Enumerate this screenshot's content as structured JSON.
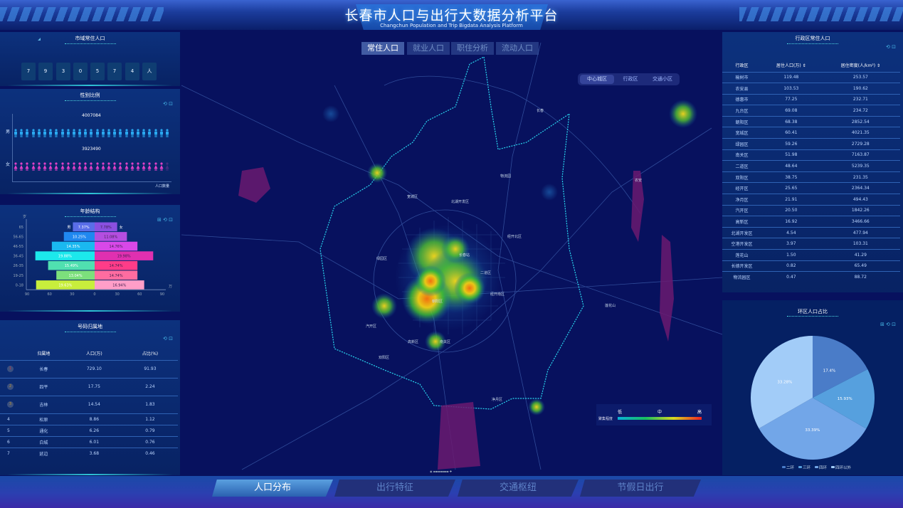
{
  "header": {
    "title": "长春市人口与出行大数据分析平台",
    "subtitle": "Changchun Population and Trip Bigdata Analysis Platform"
  },
  "map_tabs": [
    {
      "label": "常住人口",
      "active": true
    },
    {
      "label": "就业人口",
      "active": false
    },
    {
      "label": "职住分析",
      "active": false
    },
    {
      "label": "流动人口",
      "active": false
    }
  ],
  "map_subtabs": [
    {
      "label": "中心城区",
      "active": true
    },
    {
      "label": "行政区",
      "active": false
    },
    {
      "label": "交通小区",
      "active": false
    }
  ],
  "map_labels": [
    "长春",
    "宽城区",
    "北湖开发区",
    "物流园",
    "经开北区",
    "绿园区",
    "长春站",
    "二道区",
    "经开南区",
    "朝阳区",
    "汽开区",
    "高新区",
    "南关区",
    "双阳区",
    "净月区",
    "莲花山",
    "农安"
  ],
  "heat_legend": {
    "title": "聚集程度",
    "low": "低",
    "mid": "中",
    "high": "高",
    "colors": [
      "#0ab0d8",
      "#18c060",
      "#d8d820",
      "#f02020"
    ]
  },
  "total_population": {
    "title": "市域常住人口",
    "digits": [
      "7",
      "9",
      "3",
      "0",
      "5",
      "7",
      "4"
    ],
    "unit": "人"
  },
  "gender": {
    "title": "性别比例",
    "male_label": "男",
    "female_label": "女",
    "male_value": "4007084",
    "female_value": "3923490",
    "axis_label": "人口数量",
    "male_color": "#2aa8f0",
    "female_color": "#e040c8"
  },
  "toolbox": {
    "icons": [
      "data-view-icon",
      "refresh-icon",
      "save-image-icon"
    ],
    "glyphs": "⊞ ⟲ ⊡",
    "glyphs_two": "⟲ ⊡"
  },
  "age_structure": {
    "title": "年龄结构",
    "y_unit": "岁",
    "x_unit": "万",
    "male_label": "男",
    "female_label": "女",
    "chart_data": {
      "type": "bar",
      "orientation": "horizontal-pyramid",
      "categories": [
        "0-18",
        "19-25",
        "26-35",
        "36-45",
        "46-55",
        "56-65",
        "65"
      ],
      "xlim": [
        -90,
        90
      ],
      "x_ticks": [
        "90",
        "60",
        "30",
        "0",
        "30",
        "60",
        "90"
      ],
      "series": [
        {
          "name": "男",
          "values": [
            78,
            51,
            62,
            79,
            57,
            41,
            29
          ],
          "labels": [
            "19.63%",
            "13.04%",
            "15.49%",
            "19.88%",
            "14.35%",
            "10.25%",
            "7.37%"
          ],
          "colors": [
            "#c8ee3c",
            "#7ce07c",
            "#50e0b0",
            "#1ce8ec",
            "#1ab8f0",
            "#2088f0",
            "#5a6ee8"
          ]
        },
        {
          "name": "女",
          "values": [
            66,
            57,
            57,
            78,
            57,
            43,
            30
          ],
          "labels": [
            "16.94%",
            "14.74%",
            "14.74%",
            "19.98%",
            "14.76%",
            "11.08%",
            "7.78%"
          ],
          "colors": [
            "#ff9ec8",
            "#ff6ca0",
            "#ff3c88",
            "#e030b0",
            "#d848e8",
            "#b44ee0",
            "#8a50e0"
          ]
        }
      ]
    }
  },
  "origin_table": {
    "title": "号码归属地",
    "headers": [
      "归属地",
      "人口(万)",
      "占比(%)"
    ],
    "rows": [
      {
        "rank": "1",
        "place": "长春",
        "pop": "729.10",
        "pct": "91.93"
      },
      {
        "rank": "2",
        "place": "四平",
        "pop": "17.75",
        "pct": "2.24"
      },
      {
        "rank": "3",
        "place": "吉林",
        "pop": "14.54",
        "pct": "1.83"
      },
      {
        "rank": "4",
        "place": "松原",
        "pop": "8.86",
        "pct": "1.12"
      },
      {
        "rank": "5",
        "place": "通化",
        "pop": "6.26",
        "pct": "0.79"
      },
      {
        "rank": "6",
        "place": "白城",
        "pop": "6.01",
        "pct": "0.76"
      },
      {
        "rank": "7",
        "place": "延边",
        "pop": "3.68",
        "pct": "0.46"
      }
    ]
  },
  "district_table": {
    "title": "行政区常住人口",
    "headers": [
      "行政区",
      "居住人口(万)",
      "居住密度(人/km²)"
    ],
    "sort_icon": "⇕",
    "rows": [
      [
        "榆树市",
        "119.48",
        "253.57"
      ],
      [
        "农安县",
        "103.53",
        "190.62"
      ],
      [
        "德惠市",
        "77.25",
        "232.71"
      ],
      [
        "九台区",
        "69.08",
        "234.72"
      ],
      [
        "朝阳区",
        "68.38",
        "2852.54"
      ],
      [
        "宽城区",
        "60.41",
        "4021.35"
      ],
      [
        "绿园区",
        "59.26",
        "2729.28"
      ],
      [
        "南关区",
        "51.98",
        "7163.87"
      ],
      [
        "二道区",
        "48.64",
        "5239.35"
      ],
      [
        "双阳区",
        "38.75",
        "231.35"
      ],
      [
        "经开区",
        "25.65",
        "2364.34"
      ],
      [
        "净月区",
        "21.91",
        "494.43"
      ],
      [
        "汽开区",
        "20.50",
        "1842.26"
      ],
      [
        "高新区",
        "16.92",
        "3466.66"
      ],
      [
        "北湖开发区",
        "4.54",
        "477.94"
      ],
      [
        "空港开发区",
        "3.97",
        "103.31"
      ],
      [
        "莲花山",
        "1.50",
        "41.29"
      ],
      [
        "长德开发区",
        "0.82",
        "65.49"
      ],
      [
        "物流园区",
        "0.47",
        "88.72"
      ]
    ]
  },
  "ring_pie": {
    "title": "环区人口占比",
    "chart_data": {
      "type": "pie",
      "categories": [
        "二环",
        "三环",
        "四环",
        "四环以外"
      ],
      "values": [
        17.4,
        15.93,
        33.39,
        33.28
      ],
      "labels": [
        "17.4%",
        "15.93%",
        "33.39%",
        "33.28%"
      ],
      "colors": [
        "#4a7cc8",
        "#56a0de",
        "#72a6e8",
        "#a2ccf8"
      ],
      "legend": "bottom"
    }
  },
  "bottom_nav": [
    {
      "label": "人口分布",
      "active": true
    },
    {
      "label": "出行特征",
      "active": false
    },
    {
      "label": "交通枢纽",
      "active": false
    },
    {
      "label": "节假日出行",
      "active": false
    }
  ]
}
